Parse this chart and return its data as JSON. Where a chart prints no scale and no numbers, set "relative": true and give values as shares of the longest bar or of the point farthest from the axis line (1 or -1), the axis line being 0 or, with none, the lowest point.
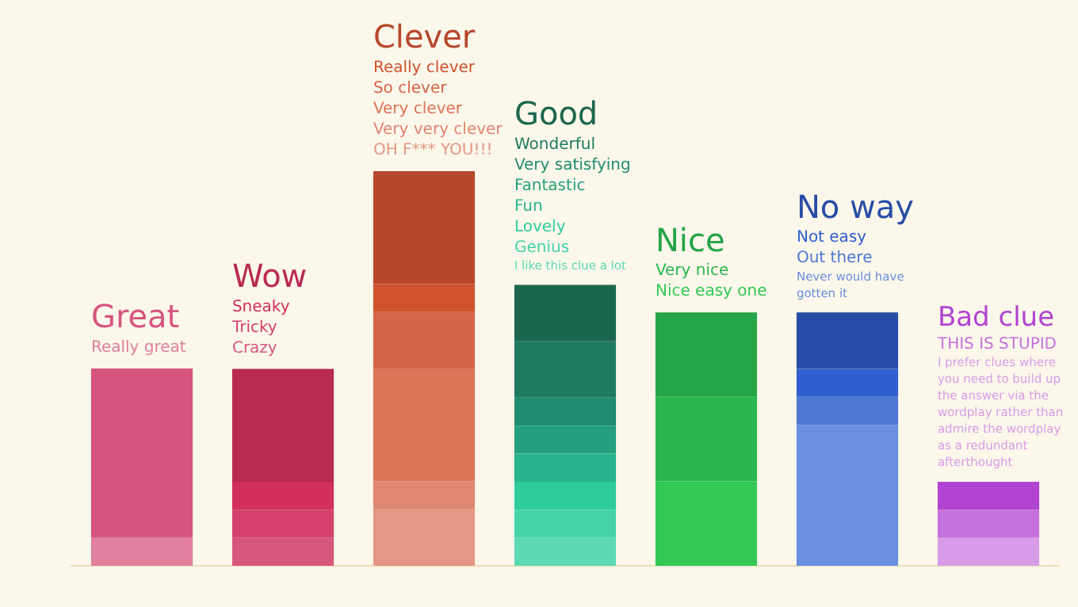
{
  "chart_data": {
    "type": "bar",
    "stacked": true,
    "relative": true,
    "categories": [
      null,
      null,
      null,
      null,
      null,
      null,
      null
    ],
    "series": [
      {
        "values": [
          0.071,
          0.071,
          0.143,
          0.071,
          0.214,
          0.357,
          0.071
        ],
        "colors": [
          "#e07f9e",
          "#d8577e",
          "#e39784",
          "#5ed9b6",
          "#33c856",
          "#6b8ee0",
          "#d89be8"
        ]
      },
      {
        "values": [
          0.429,
          0.071,
          0.071,
          0.071,
          0.214,
          0.071,
          0.071
        ],
        "colors": [
          "#d6557e",
          "#d4416c",
          "#e08672",
          "#44d3a9",
          "#2bb64f",
          "#4f79d2",
          "#c571dd"
        ]
      },
      {
        "values": [
          null,
          0.071,
          0.286,
          0.071,
          0.214,
          0.071,
          0.071
        ],
        "colors": [
          null,
          "#d22f5c",
          "#dc7458",
          "#2ecc9d",
          "#26a449",
          "#2f5fcf",
          "#b043d1"
        ]
      },
      {
        "values": [
          null,
          0.286,
          0.143,
          0.071,
          null,
          0.143,
          null
        ],
        "colors": [
          null,
          "#b92a52",
          "#d4654a",
          "#27b38c",
          null,
          "#274da6",
          null
        ]
      },
      {
        "values": [
          null,
          null,
          0.071,
          0.071,
          null,
          null,
          null
        ],
        "colors": [
          null,
          null,
          "#d0532e",
          "#25a07e",
          null,
          null,
          null
        ]
      },
      {
        "values": [
          null,
          null,
          0.286,
          0.071,
          null,
          null,
          null
        ],
        "colors": [
          null,
          null,
          "#b7472c",
          "#218c70",
          null,
          null,
          null
        ]
      },
      {
        "values": [
          null,
          null,
          null,
          0.143,
          null,
          null,
          null
        ],
        "colors": [
          null,
          null,
          null,
          "#1f7a60",
          null,
          null,
          null
        ]
      },
      {
        "values": [
          null,
          null,
          null,
          0.143,
          null,
          null,
          null
        ],
        "colors": [
          null,
          null,
          null,
          "#1c6650",
          null,
          null,
          null
        ]
      }
    ],
    "annotations": [
      "Great",
      "Really great",
      "Wow",
      "Sneaky",
      "Tricky",
      "Crazy",
      "Clever",
      "Really clever",
      "So clever",
      "Very clever",
      "Very very clever",
      "OH F*** YOU!!!",
      "Good",
      "Wonderful",
      "Very satisfying",
      "Fantastic",
      "Fun",
      "Lovely",
      "Genius",
      "I like this clue a lot",
      "Nice",
      "Very nice",
      "Nice easy one",
      "No way",
      "Not easy",
      "Out there",
      "Never would have gotten it",
      "Bad clue",
      "THIS IS STUPID",
      "I prefer clues where you need to build up the answer via the wordplay rather than admire the wordplay as a redundant afterthought"
    ]
  }
}
